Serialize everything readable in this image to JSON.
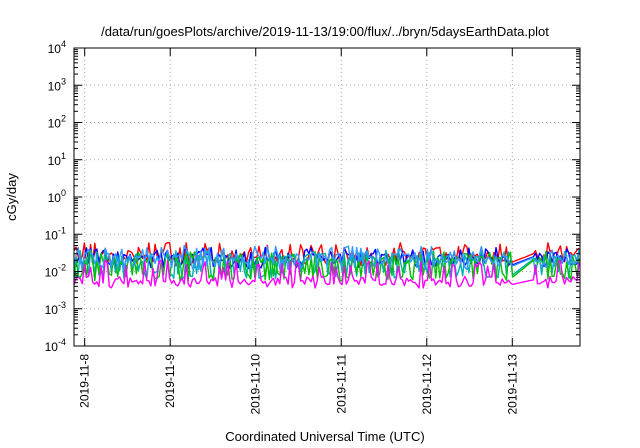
{
  "chart_data": {
    "type": "line",
    "title": "/data/run/goesPlots/archive/2019-11-13/19:00/flux/../bryn/5daysEarthData.plot",
    "xlabel": "Coordinated Universal Time (UTC)",
    "ylabel": "cGy/day",
    "yscale": "log",
    "ylim": [
      0.0001,
      10000
    ],
    "y_ticks": [
      {
        "value": 0.0001,
        "base": "10",
        "exp": "-4"
      },
      {
        "value": 0.001,
        "base": "10",
        "exp": "-3"
      },
      {
        "value": 0.01,
        "base": "10",
        "exp": "-2"
      },
      {
        "value": 0.1,
        "base": "10",
        "exp": "-1"
      },
      {
        "value": 1,
        "base": "10",
        "exp": "0"
      },
      {
        "value": 10,
        "base": "10",
        "exp": "1"
      },
      {
        "value": 100,
        "base": "10",
        "exp": "2"
      },
      {
        "value": 1000,
        "base": "10",
        "exp": "3"
      },
      {
        "value": 10000,
        "base": "10",
        "exp": "4"
      }
    ],
    "xlim": [
      "2019-11-07 21:00",
      "2019-11-13 19:00"
    ],
    "x_ticks": [
      "2019-11-8",
      "2019-11-9",
      "2019-11-10",
      "2019-11-11",
      "2019-11-12",
      "2019-11-13"
    ],
    "grid": true,
    "data_gap": [
      "2019-11-13 00:00",
      "2019-11-13 06:00"
    ],
    "series": [
      {
        "color": "#ff0000",
        "base": 0.03,
        "spike": 0.06,
        "low": 0.018
      },
      {
        "color": "#0000ff",
        "base": 0.025,
        "spike": 0.045,
        "low": 0.015
      },
      {
        "color": "#00b0b0",
        "base": 0.022,
        "spike": 0.04,
        "low": 0.008
      },
      {
        "color": "#00c000",
        "base": 0.02,
        "spike": 0.035,
        "low": 0.007
      },
      {
        "color": "#3399ff",
        "base": 0.024,
        "spike": 0.05,
        "low": 0.014
      },
      {
        "color": "#ff00ff",
        "base": 0.006,
        "spike": 0.02,
        "low": 0.0045
      }
    ]
  }
}
